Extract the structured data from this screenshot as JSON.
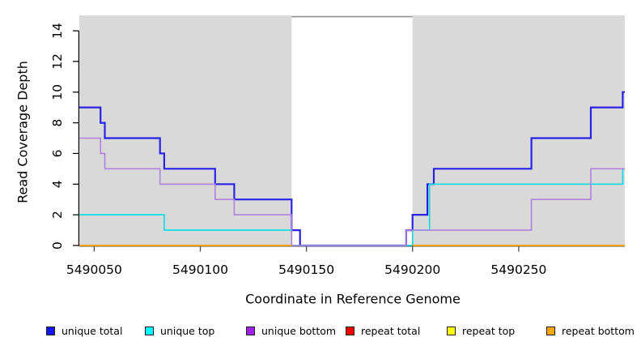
{
  "chart_data": {
    "type": "line",
    "subtype": "step-coverage",
    "title": "",
    "xlabel": "Coordinate in Reference Genome",
    "ylabel": "Read Coverage Depth",
    "xlim": [
      5490043,
      5490300
    ],
    "ylim": [
      0,
      15
    ],
    "x_ticks": [
      5490050,
      5490100,
      5490150,
      5490200,
      5490250
    ],
    "y_ticks": [
      0,
      2,
      4,
      6,
      8,
      10,
      12,
      14
    ],
    "grid": false,
    "legend_position": "bottom-horizontal",
    "background_color": "#ffffff",
    "shaded_region_color": "#d9d9d9",
    "shaded_regions": [
      {
        "x_start": 5490043,
        "x_end": 5490143
      },
      {
        "x_start": 5490200,
        "x_end": 5490300
      }
    ],
    "gap_top_line": {
      "x_start": 5490143,
      "x_end": 5490200,
      "y_value": 14.92,
      "color": "#8f8f8f"
    },
    "series": [
      {
        "name": "unique total",
        "line_color": "#2a23e6",
        "legend_fill": "#1414ff",
        "segments": [
          [
            [
              5490043,
              9
            ],
            [
              5490053,
              8
            ],
            [
              5490055,
              7
            ],
            [
              5490081,
              6
            ],
            [
              5490083,
              5
            ],
            [
              5490107,
              4
            ],
            [
              5490116,
              3
            ],
            [
              5490143,
              1
            ],
            [
              5490147,
              0
            ],
            [
              5490197,
              1
            ],
            [
              5490200,
              2
            ],
            [
              5490207,
              4
            ],
            [
              5490210,
              5
            ],
            [
              5490256,
              7
            ],
            [
              5490284,
              9
            ],
            [
              5490299,
              10
            ],
            [
              5490300,
              10
            ]
          ]
        ]
      },
      {
        "name": "unique top",
        "line_color": "#00dfe8",
        "legend_fill": "#00ffff",
        "segments": [
          [
            [
              5490043,
              2
            ],
            [
              5490083,
              1
            ],
            [
              5490143,
              0
            ],
            [
              5490200,
              1
            ],
            [
              5490208,
              4
            ],
            [
              5490299,
              5
            ],
            [
              5490300,
              5
            ]
          ]
        ]
      },
      {
        "name": "unique bottom",
        "line_color": "#b083e0",
        "legend_fill": "#a020f0",
        "segments": [
          [
            [
              5490043,
              7
            ],
            [
              5490053,
              6
            ],
            [
              5490055,
              5
            ],
            [
              5490081,
              4
            ],
            [
              5490107,
              3
            ],
            [
              5490116,
              2
            ],
            [
              5490143,
              0
            ],
            [
              5490197,
              1
            ],
            [
              5490256,
              3
            ],
            [
              5490284,
              5
            ],
            [
              5490300,
              5
            ]
          ]
        ]
      },
      {
        "name": "repeat total",
        "line_color": "#e60000",
        "legend_fill": "#ee0000",
        "segments": [
          [
            [
              5490043,
              0
            ],
            [
              5490143,
              0
            ]
          ],
          [
            [
              5490200,
              0
            ],
            [
              5490300,
              0
            ]
          ]
        ]
      },
      {
        "name": "repeat top",
        "line_color": "#ffff00",
        "legend_fill": "#ffff00",
        "segments": [
          [
            [
              5490043,
              0
            ],
            [
              5490143,
              0
            ]
          ],
          [
            [
              5490200,
              0
            ],
            [
              5490300,
              0
            ]
          ]
        ]
      },
      {
        "name": "repeat bottom",
        "line_color": "#ff9f00",
        "legend_fill": "#ffa500",
        "segments": [
          [
            [
              5490043,
              0
            ],
            [
              5490143,
              0
            ]
          ],
          [
            [
              5490200,
              0
            ],
            [
              5490300,
              0
            ]
          ]
        ]
      }
    ]
  }
}
